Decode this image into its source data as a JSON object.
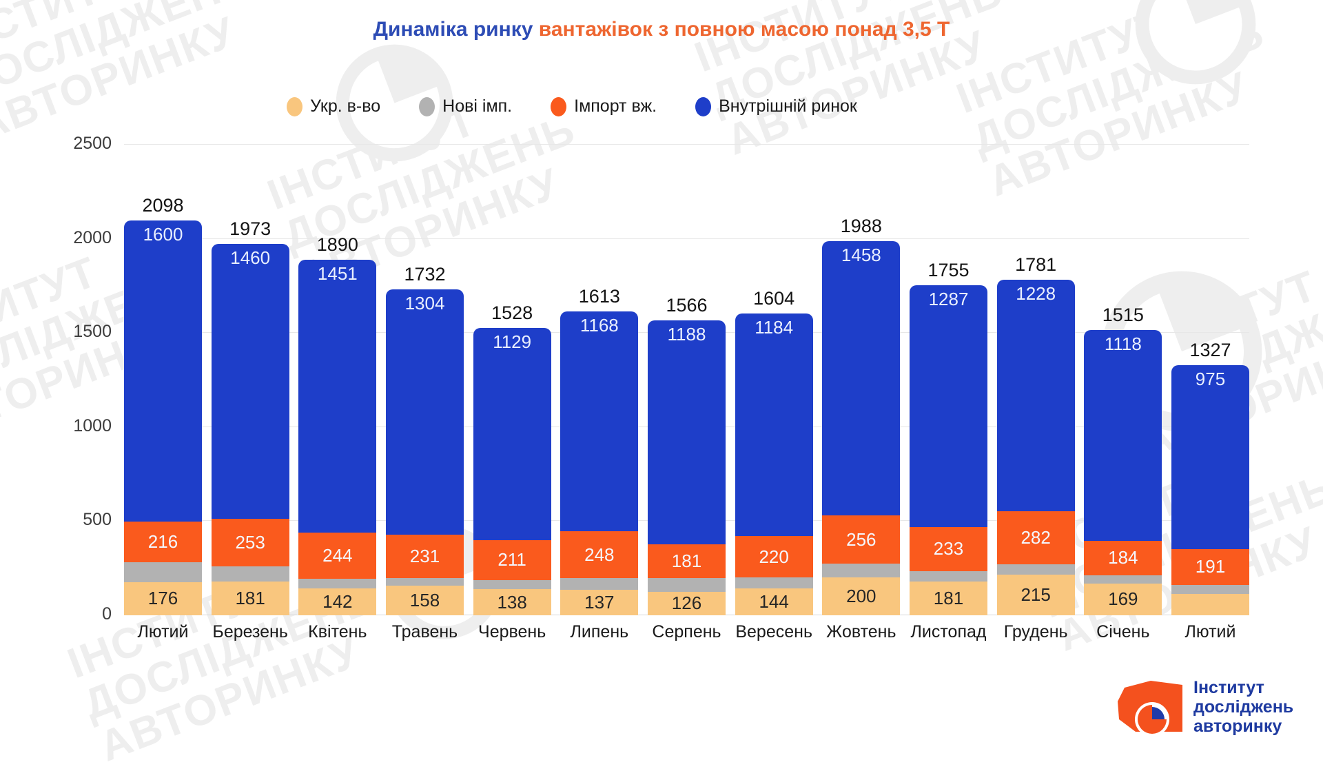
{
  "title": {
    "part1": "Динаміка ринку",
    "part2": " вантажівок з повною масою понад 3,5 Т"
  },
  "legend": [
    {
      "label": "Укр. в-во",
      "color": "#f9c67e"
    },
    {
      "label": "Нові імп.",
      "color": "#b2b2b2"
    },
    {
      "label": "Імпорт вж.",
      "color": "#fa5a1d"
    },
    {
      "label": "Внутрішній ринок",
      "color": "#1e3ec9"
    }
  ],
  "chart_data": {
    "type": "bar",
    "stacked": true,
    "title": "Динаміка ринку вантажівок з повною масою понад 3,5 Т",
    "categories": [
      "Лютий",
      "Березень",
      "Квітень",
      "Травень",
      "Червень",
      "Липень",
      "Серпень",
      "Вересень",
      "Жовтень",
      "Листопад",
      "Грудень",
      "Січень",
      "Лютий"
    ],
    "series": [
      {
        "name": "Укр. в-во",
        "color": "#f9c67e",
        "label_color": "#262626",
        "label_position": "center",
        "values": [
          176,
          181,
          142,
          158,
          138,
          137,
          126,
          144,
          200,
          181,
          215,
          169,
          115
        ],
        "labels": [
          "176",
          "181",
          "142",
          "158",
          "138",
          "137",
          "126",
          "144",
          "200",
          "181",
          "215",
          "169",
          ""
        ]
      },
      {
        "name": "Нові імп.",
        "color": "#b2b2b2",
        "label_color": "#262626",
        "label_position": "center",
        "values": [
          106,
          79,
          53,
          39,
          50,
          60,
          71,
          56,
          74,
          54,
          56,
          44,
          46
        ],
        "labels": [
          "",
          "",
          "",
          "",
          "",
          "",
          "",
          "",
          "",
          "",
          "",
          "",
          ""
        ]
      },
      {
        "name": "Імпорт вж.",
        "color": "#fa5a1d",
        "label_color": "#f5f7ff",
        "label_position": "center",
        "values": [
          216,
          253,
          244,
          231,
          211,
          248,
          181,
          220,
          256,
          233,
          282,
          184,
          191
        ],
        "labels": [
          "216",
          "253",
          "244",
          "231",
          "211",
          "248",
          "181",
          "220",
          "256",
          "233",
          "282",
          "184",
          "191"
        ]
      },
      {
        "name": "Внутрішній ринок",
        "color": "#1e3ec9",
        "label_color": "#e9efff",
        "label_position": "top",
        "values": [
          1600,
          1460,
          1451,
          1304,
          1129,
          1168,
          1188,
          1184,
          1458,
          1287,
          1228,
          1118,
          975
        ],
        "labels": [
          "1600",
          "1460",
          "1451",
          "1304",
          "1129",
          "1168",
          "1188",
          "1184",
          "1458",
          "1287",
          "1228",
          "1118",
          "975"
        ]
      }
    ],
    "totals": [
      2098,
      1973,
      1890,
      1732,
      1528,
      1613,
      1566,
      1604,
      1988,
      1755,
      1781,
      1515,
      1327
    ],
    "total_labels": [
      "2098",
      "1973",
      "1890",
      "1732",
      "1528",
      "1613",
      "1566",
      "1604",
      "1988",
      "1755",
      "1781",
      "1515",
      "1327"
    ],
    "ylim": [
      0,
      2500
    ],
    "yticks": [
      0,
      500,
      1000,
      1500,
      2000,
      2500
    ],
    "ytick_labels": [
      "0",
      "500",
      "1000",
      "1500",
      "2000",
      "2500"
    ],
    "grid": true,
    "legend_position": "top"
  },
  "watermark": {
    "lines": [
      "інститут",
      "досліджень",
      "авторинку"
    ],
    "color": "#eeeeee"
  },
  "logo": {
    "line1": "Інститут",
    "line2": "досліджень",
    "line3": "авторинку",
    "text_color": "#1e3aa0",
    "truck_color": "#f4511e",
    "wheel_quarter_color": "#1f3ba8"
  }
}
